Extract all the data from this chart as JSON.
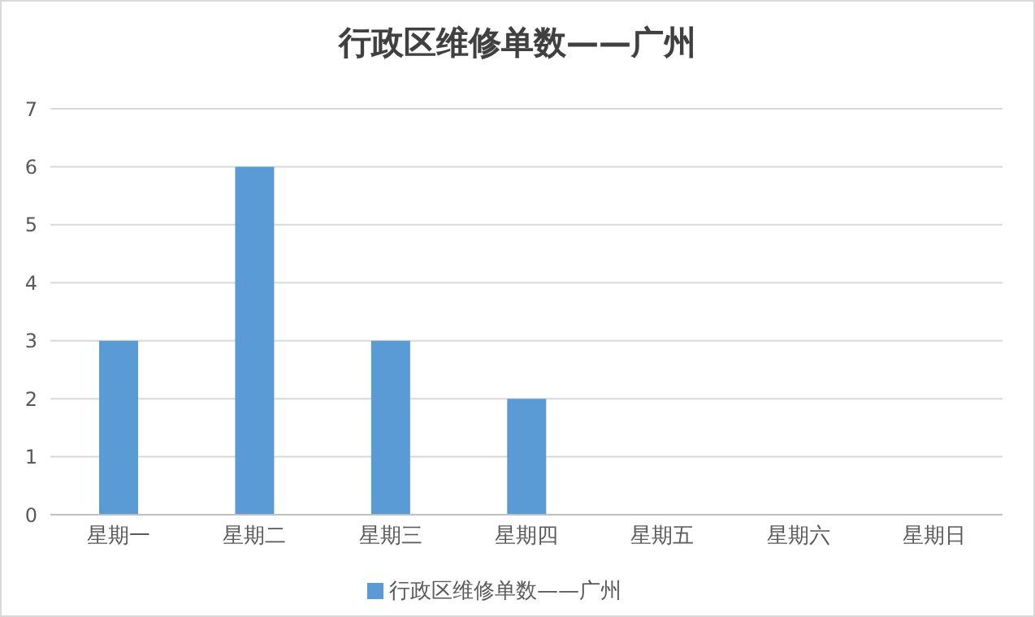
{
  "chart_data": {
    "type": "bar",
    "title": "行政区维修单数——广州",
    "categories": [
      "星期一",
      "星期二",
      "星期三",
      "星期四",
      "星期五",
      "星期六",
      "星期日"
    ],
    "series": [
      {
        "name": "行政区维修单数——广州",
        "color": "#5b9bd5",
        "values": [
          3,
          6,
          3,
          2,
          0,
          0,
          0
        ]
      }
    ],
    "ylim": [
      0,
      7
    ],
    "yticks": [
      0,
      1,
      2,
      3,
      4,
      5,
      6,
      7
    ],
    "grid": "y",
    "legend": "bottom"
  }
}
